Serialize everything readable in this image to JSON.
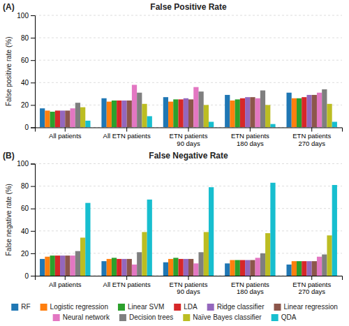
{
  "chart_data": [
    {
      "type": "bar",
      "title": "False Positive Rate",
      "ylabel": "False positive rate (%)",
      "annotations": [
        "(A)"
      ],
      "categories": [
        "All patients",
        "All ETN patients",
        "ETN patients\n90 days",
        "ETN patients\n180 days",
        "ETN patients\n270 days"
      ],
      "series": [
        {
          "name": "RF",
          "values": [
            17,
            26,
            27,
            29,
            31
          ]
        },
        {
          "name": "Logistic regression",
          "values": [
            15,
            23,
            23,
            24,
            26
          ]
        },
        {
          "name": "Linear SVM",
          "values": [
            14,
            24,
            25,
            25,
            26
          ]
        },
        {
          "name": "LDA",
          "values": [
            15,
            24,
            25,
            26,
            27
          ]
        },
        {
          "name": "Ridge classifier",
          "values": [
            15,
            24,
            26,
            27,
            29
          ]
        },
        {
          "name": "Linear regression",
          "values": [
            15,
            24,
            25,
            27,
            29
          ]
        },
        {
          "name": "Neural network",
          "values": [
            17,
            38,
            36,
            26,
            31
          ]
        },
        {
          "name": "Decision trees",
          "values": [
            22,
            31,
            32,
            33,
            34
          ]
        },
        {
          "name": "Naïve Bayes classifier",
          "values": [
            18,
            21,
            20,
            20,
            21
          ]
        },
        {
          "name": "QDA",
          "values": [
            6,
            10,
            5,
            3,
            5
          ]
        }
      ],
      "ylim": [
        0,
        100
      ],
      "yticks": [
        0,
        20,
        40,
        60,
        80,
        100
      ],
      "grid": true,
      "legend": "bottom"
    },
    {
      "type": "bar",
      "title": "False Negative Rate",
      "ylabel": "False negative rate (%)",
      "annotations": [
        "(B)"
      ],
      "categories": [
        "All patients",
        "All ETN patients",
        "ETN patients\n90 days",
        "ETN patients\n180 days",
        "ETN patients\n270 days"
      ],
      "series": [
        {
          "values": [
            15,
            13,
            12,
            11,
            10
          ]
        },
        {
          "values": [
            17,
            15,
            15,
            14,
            13
          ]
        },
        {
          "values": [
            18,
            16,
            16,
            14,
            13
          ]
        },
        {
          "values": [
            18,
            15,
            15,
            14,
            13
          ]
        },
        {
          "values": [
            18,
            15,
            15,
            14,
            13
          ]
        },
        {
          "values": [
            18,
            15,
            15,
            14,
            13
          ]
        },
        {
          "values": [
            18,
            10,
            11,
            16,
            17
          ]
        },
        {
          "values": [
            22,
            21,
            21,
            20,
            19
          ]
        },
        {
          "values": [
            34,
            39,
            39,
            38,
            36
          ]
        },
        {
          "values": [
            65,
            68,
            79,
            83,
            81
          ]
        }
      ],
      "ylim": [
        0,
        100
      ],
      "yticks": [
        0,
        20,
        40,
        60,
        80,
        100
      ],
      "grid": true
    }
  ]
}
